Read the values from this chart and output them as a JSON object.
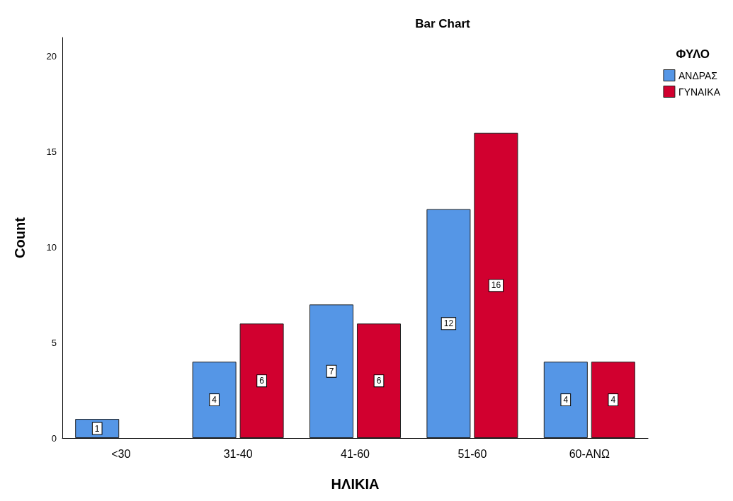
{
  "chart_data": {
    "type": "bar",
    "title": "Bar Chart",
    "xlabel": "ΗΛΙΚΙΑ",
    "ylabel": "Count",
    "legend_title": "ΦΥΛΟ",
    "categories": [
      "<30",
      "31-40",
      "41-60",
      "51-60",
      "60-ΑΝΩ"
    ],
    "series": [
      {
        "name": "ΑΝΔΡΑΣ",
        "color": "#5596e6",
        "values": [
          1,
          4,
          7,
          12,
          4
        ]
      },
      {
        "name": "ΓΥΝΑΙΚΑ",
        "color": "#d1002f",
        "values": [
          null,
          6,
          6,
          16,
          4
        ]
      }
    ],
    "ylim": [
      0,
      21
    ],
    "yticks": [
      0,
      5,
      10,
      15,
      20
    ],
    "grid": false,
    "legend": "top right",
    "data_labels": true
  }
}
